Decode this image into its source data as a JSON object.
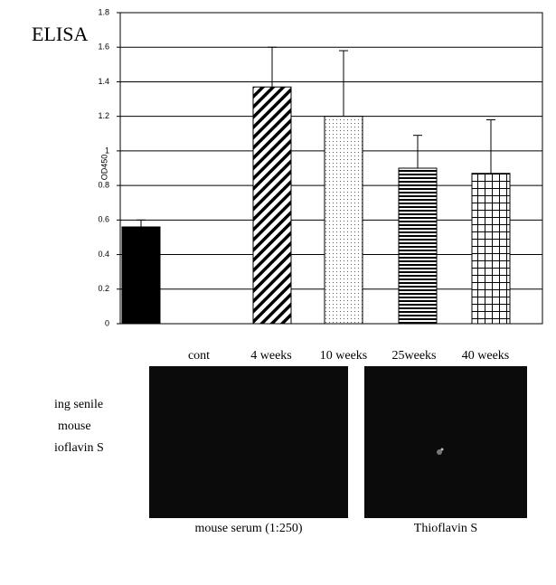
{
  "chart_data": {
    "type": "bar",
    "title": "ELISA",
    "y_label": "OD450",
    "categories": [
      "cont",
      "4 weeks",
      "10 weeks",
      "25weeks",
      "40 weeks"
    ],
    "values": [
      0.56,
      1.37,
      1.2,
      0.9,
      0.87
    ],
    "errors": [
      0.04,
      0.23,
      0.38,
      0.19,
      0.31
    ],
    "fills": [
      "solid",
      "diagonal",
      "dots",
      "horizontal",
      "grid"
    ],
    "color": "#000000",
    "ylim": [
      0,
      1.8
    ],
    "yticks": [
      0,
      0.2,
      0.4,
      0.6,
      0.8,
      1,
      1.2,
      1.4,
      1.6,
      1.8
    ],
    "grid": true
  },
  "side_text": [
    "ing senile",
    "mouse",
    "ioflavin S"
  ],
  "panels": [
    {
      "caption": "mouse serum (1:250)"
    },
    {
      "caption": "Thioflavin S"
    }
  ]
}
